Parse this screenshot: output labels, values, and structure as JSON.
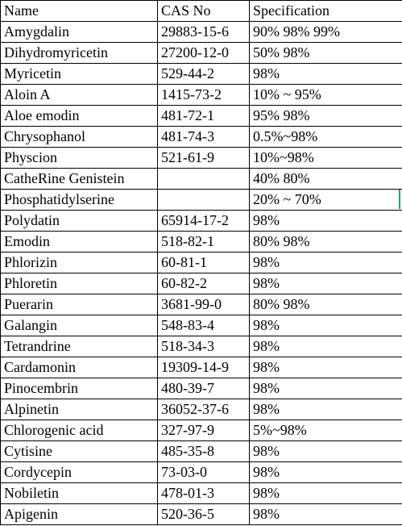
{
  "table": {
    "headers": [
      "Name",
      "CAS  No",
      "Specification"
    ],
    "rows": [
      [
        "Amygdalin",
        "29883-15-6",
        "90%  98%  99%"
      ],
      [
        "Dihydromyricetin",
        "27200-12-0",
        "50%  98%"
      ],
      [
        "Myricetin",
        "529-44-2",
        "98%"
      ],
      [
        "Aloin A",
        "1415-73-2",
        "10% ~ 95%"
      ],
      [
        "Aloe emodin",
        "481-72-1",
        "95%  98%"
      ],
      [
        "Chrysophanol",
        "481-74-3",
        "0.5%~98%"
      ],
      [
        "Physcion",
        "521-61-9",
        "10%~98%"
      ],
      [
        "CatheRine Genistein",
        "",
        "40%  80%"
      ],
      [
        "Phosphatidylserine",
        "",
        "20% ~ 70%"
      ],
      [
        "Polydatin",
        "65914-17-2",
        "98%"
      ],
      [
        "Emodin",
        "518-82-1",
        "80%  98%"
      ],
      [
        "Phlorizin",
        "60-81-1",
        "98%"
      ],
      [
        "Phloretin",
        "60-82-2",
        "98%"
      ],
      [
        "Puerarin",
        "3681-99-0",
        "80%  98%"
      ],
      [
        "Galangin",
        "548-83-4",
        "98%"
      ],
      [
        "Tetrandrine",
        "518-34-3",
        "98%"
      ],
      [
        "Cardamonin",
        "19309-14-9",
        "98%"
      ],
      [
        "Pinocembrin",
        "480-39-7",
        "98%"
      ],
      [
        "Alpinetin",
        "36052-37-6",
        "98%"
      ],
      [
        "Chlorogenic acid",
        "327-97-9",
        "5%~98%"
      ],
      [
        "Cytisine",
        "485-35-8",
        "98%"
      ],
      [
        "Cordycepin",
        "73-03-0",
        "98%"
      ],
      [
        "Nobiletin",
        "478-01-3",
        "98%"
      ],
      [
        "Apigenin",
        "520-36-5",
        "98%"
      ]
    ]
  },
  "colors": {
    "grid_line": "#000000",
    "text": "#000000",
    "background": "#ffffff",
    "edge_mark": "#21a366"
  }
}
